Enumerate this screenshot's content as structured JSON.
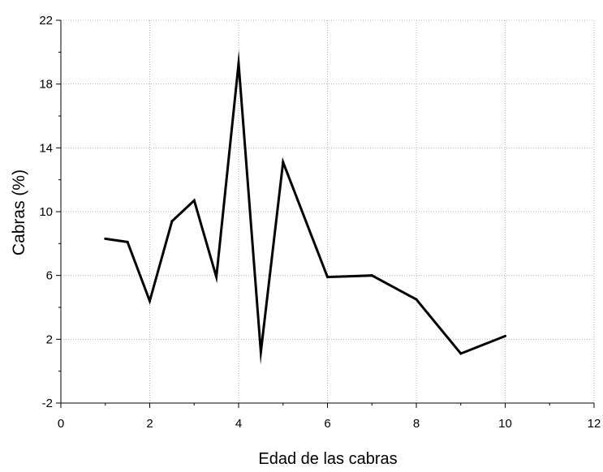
{
  "chart_data": {
    "type": "line",
    "title": "",
    "xlabel": "Edad de las cabras",
    "ylabel": "Cabras (%)",
    "xlim": [
      0,
      12
    ],
    "ylim": [
      -2,
      22
    ],
    "x_ticks": [
      0,
      2,
      4,
      6,
      8,
      10,
      12
    ],
    "y_ticks": [
      -2,
      2,
      6,
      10,
      14,
      18,
      22
    ],
    "grid": true,
    "legend": "none",
    "line_color": "#000000",
    "series": [
      {
        "x": [
          1,
          1.5,
          2,
          2.5,
          3,
          3.5,
          4,
          4.5,
          5,
          6,
          7,
          8,
          9,
          10
        ],
        "y": [
          8.3,
          8.1,
          4.4,
          9.4,
          10.7,
          5.9,
          19.3,
          1.2,
          13.1,
          5.9,
          6.0,
          4.5,
          1.1,
          2.2
        ]
      }
    ]
  }
}
